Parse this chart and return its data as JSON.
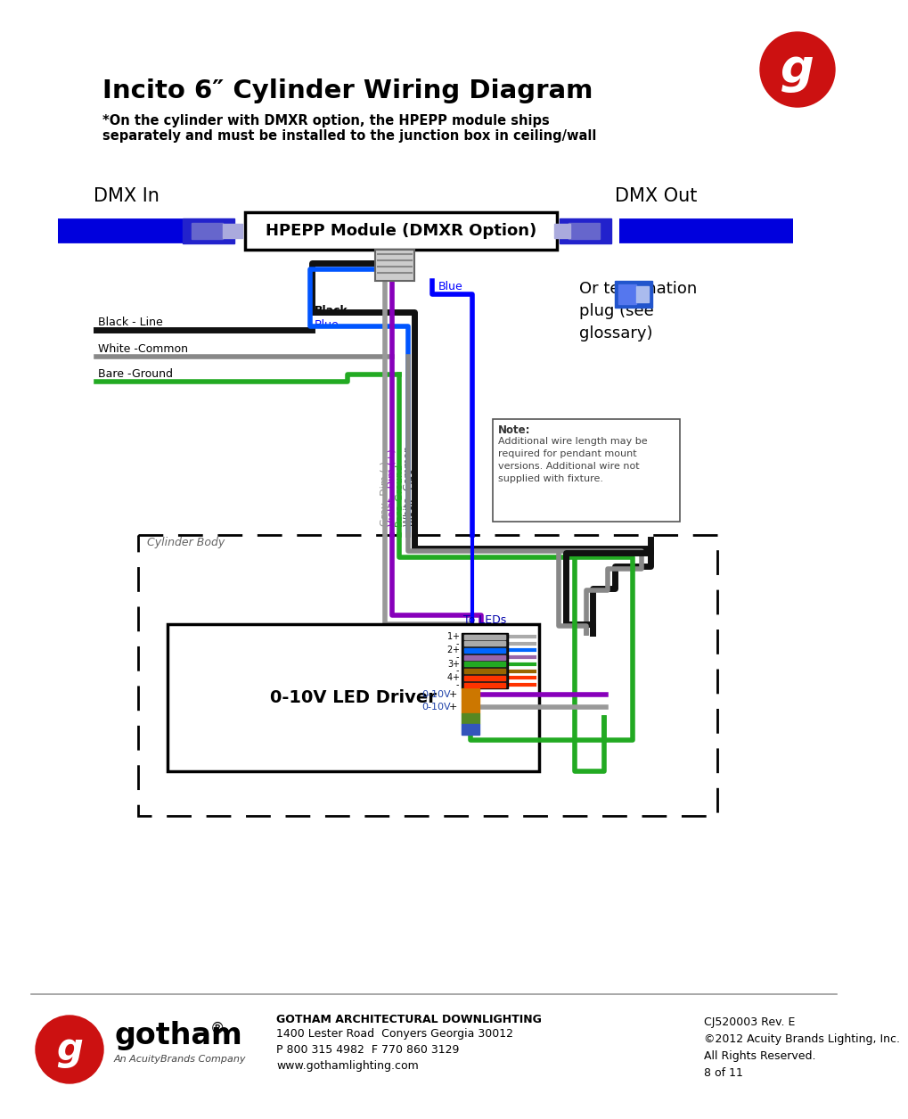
{
  "title": "Incito 6″ Cylinder Wiring Diagram",
  "subtitle": "*On the cylinder with DMXR option, the HPEPP module ships\nseparately and must be installed to the junction box in ceiling/wall",
  "dmx_in_label": "DMX In",
  "dmx_out_label": "DMX Out",
  "hpepp_label": "HPEPP Module (DMXR Option)",
  "driver_label": "0-10V LED Driver",
  "to_leds_label": "To LEDs",
  "note_title": "Note:",
  "note_body": "Additional wire length may be\nrequired for pendant mount\nversions. Additional wire not\nsupplied with fixture.",
  "or_termination_text": "Or termination\nplug (see\nglossary)",
  "cylinder_body_label": "Cylinder Body",
  "background_color": "#ffffff",
  "page_info": "CJ520003 Rev. E\n©2012 Acuity Brands Lighting, Inc.\nAll Rights Reserved.\n8 of 11",
  "company_address_bold": "GOTHAM ARCHITECTURAL DOWNLIGHTING",
  "company_address_normal": "1400 Lester Road  Conyers Georgia 30012\nP 800 315 4982  F 770 860 3129\nwww.gothamlighting.com",
  "company_sub": "An AcuityBrands Company"
}
